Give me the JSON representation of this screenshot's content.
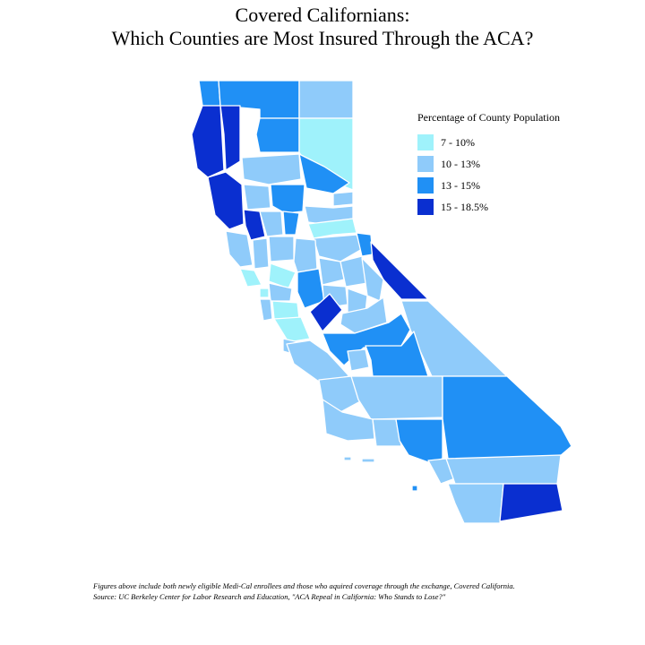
{
  "title": {
    "line1": "Covered Californians:",
    "line2": "Which Counties are Most Insured Through the ACA?"
  },
  "legend": {
    "title": "Percentage of County Population",
    "items": [
      {
        "label": "7 - 10%",
        "color": "#9ff2fb"
      },
      {
        "label": "10 - 13%",
        "color": "#8fcbfa"
      },
      {
        "label": "13 - 15%",
        "color": "#2090f5"
      },
      {
        "label": "15 - 18.5%",
        "color": "#0a2fd0"
      }
    ]
  },
  "footer": {
    "note": "Figures above include both newly eligible Medi-Cal enrollees and those who aquired coverage through the exchange, Covered California.",
    "source": "Source: UC Berkeley Center for Labor Research and Education, \"ACA Repeal in California: Who Stands to Lose?\""
  },
  "map_data": {
    "region": "California counties",
    "classes": [
      "7 - 10%",
      "10 - 13%",
      "13 - 15%",
      "15 - 18.5%"
    ]
  }
}
